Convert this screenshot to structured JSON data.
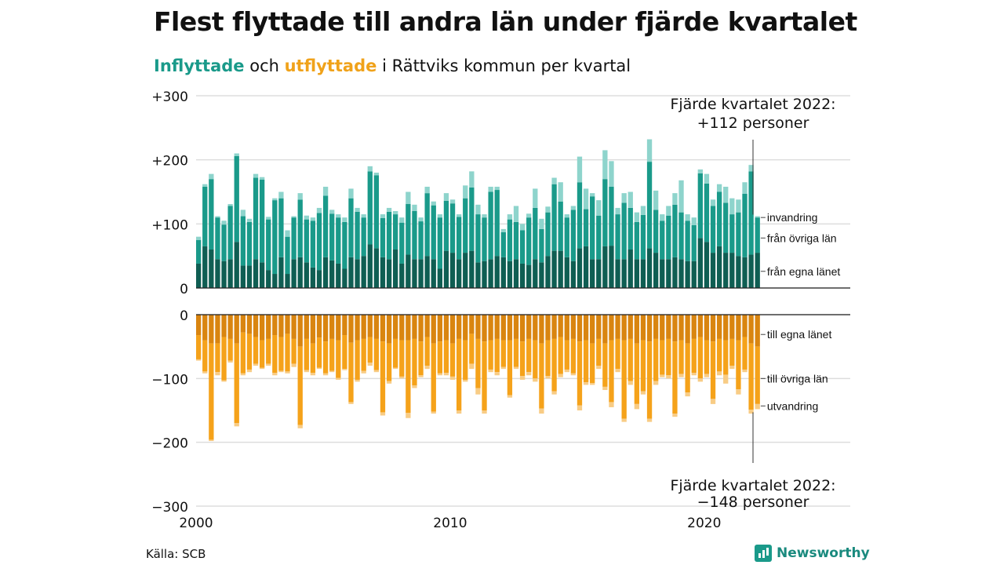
{
  "header": {
    "title": "Flest flyttade till andra län under fjärde kvartalet",
    "subtitle_in": "Inflyttade",
    "subtitle_mid": " och ",
    "subtitle_out": "utflyttade",
    "subtitle_rest": " i Rättviks kommun per kvartal"
  },
  "footer": {
    "source": "Källa: SCB",
    "brand": "Newsworthy"
  },
  "colors": {
    "in_local": "#0f5e53",
    "in_other": "#1a9a8a",
    "in_immig": "#8ed4cc",
    "out_local": "#d98510",
    "out_other": "#f5a21a",
    "out_emig": "#f8cc85",
    "grid": "#dddddd",
    "text": "#111111"
  },
  "chart_data": {
    "type": "bar",
    "stacked": true,
    "x_start": 2000,
    "x_step": 0.25,
    "xlim": [
      2000,
      2025.75
    ],
    "ylim_top": [
      0,
      300
    ],
    "ylim_bottom": [
      -300,
      0
    ],
    "x_ticks": [
      2000,
      2010,
      2020
    ],
    "y_ticks_top": [
      {
        "v": 300,
        "label": "+300"
      },
      {
        "v": 200,
        "label": "+200"
      },
      {
        "v": 100,
        "label": "+100"
      },
      {
        "v": 0,
        "label": "0"
      }
    ],
    "y_ticks_bottom": [
      {
        "v": 0,
        "label": "0"
      },
      {
        "v": -100,
        "label": "−100"
      },
      {
        "v": -200,
        "label": "−200"
      },
      {
        "v": -300,
        "label": "−300"
      }
    ],
    "in_series_labels": [
      {
        "name": "invandring",
        "y": 110
      },
      {
        "name": "från övriga län",
        "y": 78
      },
      {
        "name": "från egna länet",
        "y": 26
      }
    ],
    "out_series_labels": [
      {
        "name": "till egna länet",
        "y": -31
      },
      {
        "name": "till övriga län",
        "y": -100
      },
      {
        "name": "utvandring",
        "y": -143
      }
    ],
    "annotation_top": [
      "Fjärde kvartalet 2022:",
      "+112 personer"
    ],
    "annotation_bottom": [
      "Fjärde kvartalet 2022:",
      "−148 personer"
    ],
    "in_total": [
      80,
      162,
      178,
      112,
      105,
      131,
      210,
      122,
      108,
      178,
      173,
      111,
      140,
      150,
      90,
      112,
      148,
      113,
      110,
      125,
      158,
      122,
      115,
      110,
      155,
      125,
      115,
      190,
      180,
      115,
      125,
      120,
      110,
      150,
      130,
      110,
      158,
      135,
      115,
      148,
      138,
      115,
      160,
      182,
      130,
      115,
      158,
      158,
      92,
      115,
      128,
      100,
      116,
      155,
      108,
      127,
      172,
      165,
      115,
      128,
      205,
      155,
      148,
      137,
      215,
      198,
      125,
      148,
      150,
      118,
      128,
      232,
      152,
      115,
      128,
      148,
      168,
      115,
      110,
      185,
      178,
      138,
      162,
      158,
      140,
      138,
      165,
      192,
      112
    ],
    "in_immig": [
      5,
      4,
      8,
      2,
      6,
      3,
      4,
      10,
      5,
      6,
      4,
      4,
      3,
      10,
      10,
      2,
      10,
      6,
      5,
      8,
      14,
      6,
      5,
      7,
      15,
      6,
      5,
      8,
      4,
      6,
      6,
      5,
      8,
      19,
      10,
      6,
      10,
      6,
      5,
      12,
      6,
      4,
      20,
      25,
      15,
      5,
      8,
      5,
      5,
      8,
      25,
      10,
      6,
      30,
      16,
      9,
      10,
      30,
      5,
      6,
      40,
      32,
      5,
      24,
      45,
      40,
      10,
      15,
      25,
      15,
      14,
      35,
      30,
      10,
      15,
      18,
      50,
      10,
      12,
      6,
      15,
      10,
      12,
      25,
      25,
      20,
      18,
      10,
      2
    ],
    "in_local": [
      38,
      65,
      60,
      45,
      42,
      45,
      72,
      35,
      35,
      45,
      40,
      28,
      22,
      48,
      22,
      45,
      48,
      40,
      32,
      28,
      48,
      43,
      38,
      30,
      48,
      45,
      50,
      68,
      62,
      48,
      45,
      60,
      38,
      52,
      45,
      45,
      50,
      45,
      30,
      58,
      55,
      45,
      55,
      58,
      40,
      42,
      45,
      50,
      48,
      42,
      45,
      38,
      36,
      45,
      40,
      50,
      58,
      58,
      48,
      42,
      62,
      65,
      45,
      45,
      65,
      66,
      45,
      45,
      60,
      45,
      45,
      62,
      55,
      45,
      45,
      48,
      45,
      42,
      42,
      78,
      72,
      55,
      65,
      55,
      55,
      50,
      48,
      52,
      55
    ],
    "out_total": [
      -72,
      -92,
      -198,
      -95,
      -105,
      -75,
      -175,
      -95,
      -90,
      -80,
      -85,
      -80,
      -95,
      -90,
      -92,
      -82,
      -178,
      -90,
      -95,
      -85,
      -95,
      -90,
      -102,
      -87,
      -140,
      -105,
      -92,
      -80,
      -90,
      -158,
      -108,
      -85,
      -100,
      -162,
      -115,
      -98,
      -85,
      -155,
      -95,
      -95,
      -102,
      -155,
      -105,
      -85,
      -125,
      -155,
      -90,
      -95,
      -85,
      -130,
      -85,
      -102,
      -95,
      -105,
      -155,
      -100,
      -125,
      -98,
      -90,
      -95,
      -150,
      -110,
      -110,
      -85,
      -118,
      -145,
      -90,
      -168,
      -110,
      -148,
      -125,
      -168,
      -110,
      -98,
      -100,
      -160,
      -98,
      -128,
      -95,
      -105,
      -98,
      -140,
      -95,
      -108,
      -85,
      -125,
      -90,
      -155,
      -148
    ],
    "out_emig": [
      -2,
      -3,
      -2,
      -5,
      -2,
      -3,
      -5,
      -3,
      -4,
      -3,
      -2,
      -3,
      -4,
      -2,
      -3,
      -5,
      -5,
      -3,
      -4,
      -2,
      -3,
      -2,
      -3,
      -2,
      -3,
      -3,
      -4,
      -5,
      -3,
      -5,
      -4,
      -2,
      -3,
      -8,
      -4,
      -3,
      -5,
      -3,
      -3,
      -4,
      -5,
      -5,
      -3,
      -8,
      -10,
      -5,
      -4,
      -5,
      -3,
      -4,
      -3,
      -6,
      -5,
      -5,
      -8,
      -4,
      -5,
      -5,
      -4,
      -3,
      -8,
      -4,
      -3,
      -5,
      -5,
      -8,
      -5,
      -5,
      -6,
      -8,
      -5,
      -5,
      -6,
      -4,
      -5,
      -5,
      -5,
      -6,
      -4,
      -5,
      -5,
      -8,
      -6,
      -14,
      -5,
      -8,
      -4,
      -6,
      -8
    ],
    "out_local": [
      -32,
      -40,
      -45,
      -45,
      -35,
      -38,
      -45,
      -28,
      -30,
      -35,
      -40,
      -38,
      -32,
      -35,
      -30,
      -38,
      -50,
      -38,
      -45,
      -36,
      -42,
      -38,
      -40,
      -32,
      -44,
      -40,
      -38,
      -35,
      -38,
      -42,
      -45,
      -38,
      -40,
      -40,
      -38,
      -42,
      -35,
      -45,
      -42,
      -40,
      -45,
      -38,
      -40,
      -30,
      -38,
      -42,
      -40,
      -38,
      -40,
      -40,
      -38,
      -42,
      -38,
      -40,
      -45,
      -40,
      -38,
      -35,
      -40,
      -38,
      -42,
      -40,
      -45,
      -38,
      -45,
      -40,
      -38,
      -40,
      -38,
      -45,
      -40,
      -42,
      -38,
      -40,
      -38,
      -42,
      -40,
      -45,
      -38,
      -35,
      -40,
      -42,
      -38,
      -40,
      -38,
      -40,
      -35,
      -45,
      -50
    ]
  }
}
